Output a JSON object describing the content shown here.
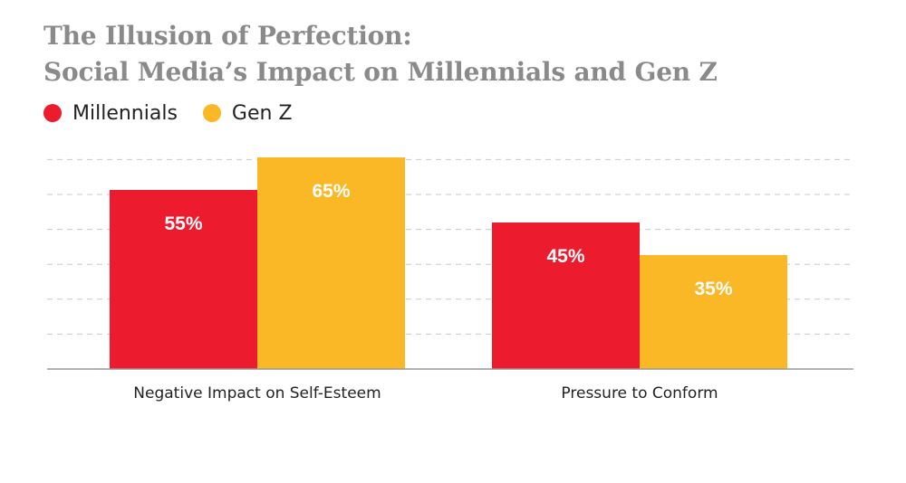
{
  "header": {
    "title_line1": "The Illusion of Perfection:",
    "title_line2": "Social Media’s Impact on Millennials and Gen Z"
  },
  "legend": {
    "items": [
      {
        "label": "Millennials",
        "color": "#ec1c2e"
      },
      {
        "label": "Gen Z",
        "color": "#fbb826"
      }
    ]
  },
  "chart_data": {
    "type": "bar",
    "categories": [
      "Negative Impact on Self-Esteem",
      "Pressure to Conform"
    ],
    "series": [
      {
        "name": "Millennials",
        "values": [
          55,
          45
        ],
        "labels": [
          "55%",
          "45%"
        ],
        "color": "#ec1c2e"
      },
      {
        "name": "Gen Z",
        "values": [
          65,
          35
        ],
        "labels": [
          "65%",
          "35%"
        ],
        "color": "#fbb826"
      }
    ],
    "title": "The Illusion of Perfection: Social Media’s Impact on Millennials and Gen Z",
    "xlabel": "",
    "ylabel": "",
    "ylim": [
      0,
      65
    ],
    "grid": true,
    "grid_style": "dashed",
    "legend_position": "top-left",
    "data_labels": "inside-top"
  }
}
